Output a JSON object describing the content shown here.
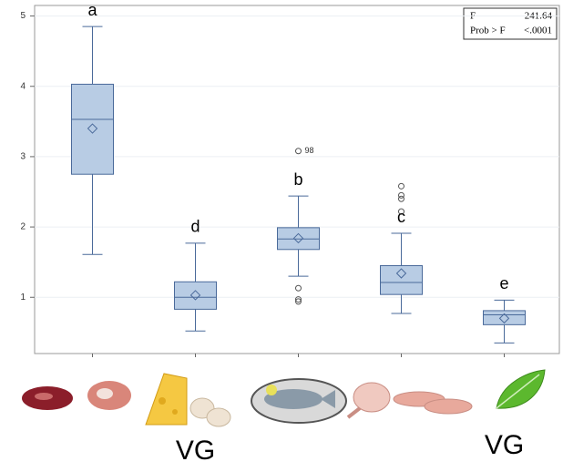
{
  "chart_data": {
    "type": "box",
    "categories": [
      null,
      null,
      null,
      null,
      null
    ],
    "ylim": [
      0.2,
      5.15
    ],
    "yticks": [
      1,
      2,
      3,
      4,
      5
    ],
    "grid": true,
    "color": "#b8cce4",
    "edge_color": "#4a6a9a",
    "boxes": [
      {
        "min": 1.61,
        "q1": 2.75,
        "median": 3.53,
        "q3": 4.03,
        "max": 4.85,
        "mean": 3.4,
        "outliers": []
      },
      {
        "min": 0.52,
        "q1": 0.83,
        "median": 1.0,
        "q3": 1.22,
        "max": 1.77,
        "mean": 1.03,
        "outliers": []
      },
      {
        "min": 1.3,
        "q1": 1.68,
        "median": 1.83,
        "q3": 1.99,
        "max": 2.44,
        "mean": 1.84,
        "outliers": [
          3.08,
          1.13,
          0.97,
          0.94
        ],
        "outlier_labels": [
          "98",
          null,
          null,
          null
        ]
      },
      {
        "min": 0.77,
        "q1": 1.04,
        "median": 1.21,
        "q3": 1.45,
        "max": 1.91,
        "mean": 1.34,
        "outliers": [
          2.58,
          2.45,
          2.4,
          2.22
        ]
      },
      {
        "min": 0.35,
        "q1": 0.61,
        "median": 0.75,
        "q3": 0.81,
        "max": 0.96,
        "mean": 0.7,
        "outliers": []
      }
    ],
    "annotations": [
      "a",
      "d",
      "b",
      "c",
      "e"
    ],
    "bottom_labels": [
      null,
      "VG",
      null,
      null,
      "VG"
    ],
    "stats": [
      {
        "name": "F",
        "value": 241.64
      },
      {
        "name": "Prob > F",
        "value": "<.0001"
      }
    ]
  }
}
